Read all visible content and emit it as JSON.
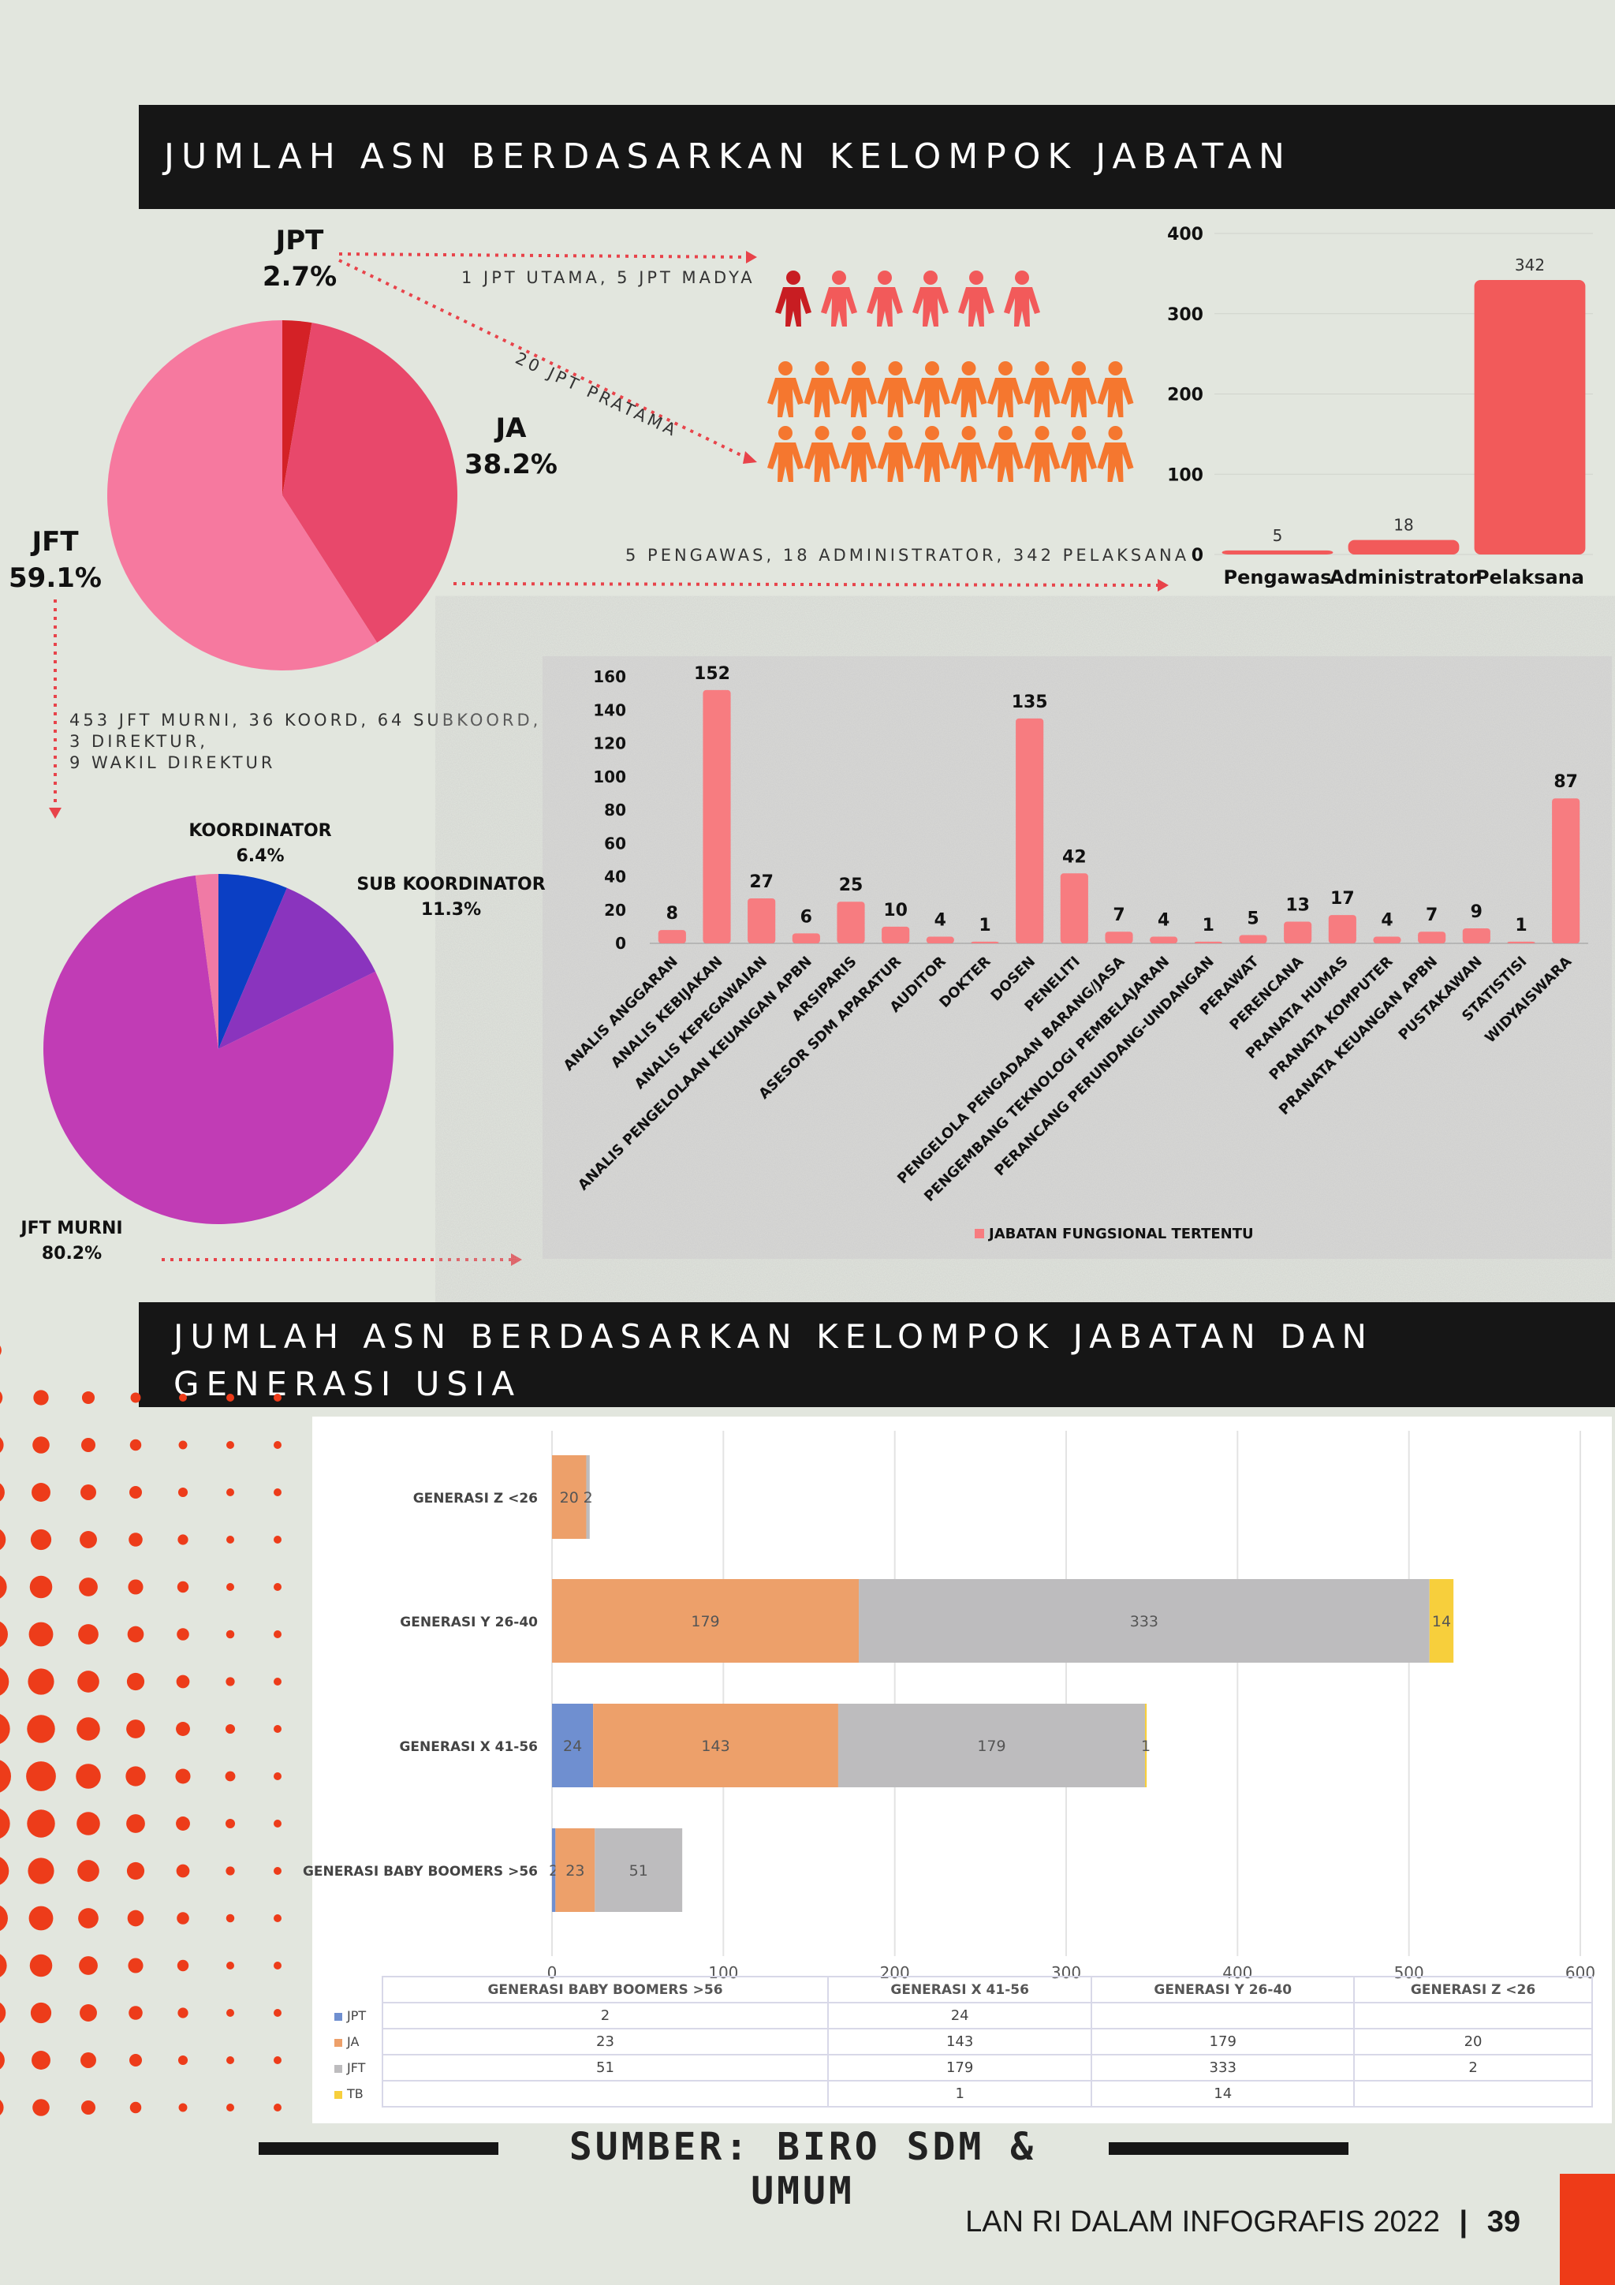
{
  "section1": {
    "title": "JUMLAH ASN BERDASARKAN KELOMPOK JABATAN",
    "pie": {
      "jpt_label": "JPT",
      "jpt_pct": "2.7%",
      "ja_label": "JA",
      "ja_pct": "38.2%",
      "jft_label": "JFT",
      "jft_pct": "59.1%",
      "colors": {
        "JPT": "#d42126",
        "JA": "#e8486b",
        "JFT": "#f6799f"
      }
    },
    "notes": {
      "jpt_utama": "1 JPT UTAMA, 5 JPT MADYA",
      "jpt_pratama": "20 JPT PRATAMA",
      "ja_detail": "5 PENGAWAS, 18 ADMINISTRATOR, 342 PELAKSANA",
      "jft_detail": "453 JFT MURNI, 36 KOORD, 64 SUBKOORD, 3 DIREKTUR,\n9 WAKIL DIREKTUR"
    },
    "pie2": {
      "koordinator_label": "KOORDINATOR",
      "koordinator_pct": "6.4%",
      "subkoordinator_label": "SUB KOORDINATOR",
      "subkoordinator_pct": "11.3%",
      "murni_label": "JFT MURNI",
      "murni_pct": "80.2%",
      "colors": {
        "koordinator": "#0b3fc4",
        "subkoordinator": "#8a34be",
        "murni": "#c13cb5",
        "other": "#f07aa5"
      }
    }
  },
  "section2": {
    "title": "JUMLAH ASN BERDASARKAN KELOMPOK JABATAN DAN GENERASI USIA"
  },
  "source": "SUMBER: BIRO SDM & UMUM",
  "footer": {
    "text": "LAN RI DALAM INFOGRAFIS 2022",
    "page": "39"
  },
  "chart_data": [
    {
      "type": "pie",
      "labels": [
        "JPT",
        "JA",
        "JFT"
      ],
      "values": [
        2.7,
        38.2,
        59.1
      ]
    },
    {
      "type": "pie",
      "labels": [
        "KOORDINATOR",
        "SUB KOORDINATOR",
        "JFT MURNI"
      ],
      "values": [
        6.4,
        11.3,
        80.2
      ]
    },
    {
      "type": "bar",
      "categories": [
        "Pengawas",
        "Administrator",
        "Pelaksana"
      ],
      "values": [
        5,
        18,
        342
      ],
      "ylim": [
        0,
        400
      ],
      "yticks": [
        0,
        100,
        200,
        300,
        400
      ],
      "color": "#f25a5a"
    },
    {
      "type": "bar",
      "categories": [
        "ANALIS ANGGARAN",
        "ANALIS KEBIJAKAN",
        "ANALIS KEPEGAWAIAN",
        "ANALIS PENGELOLAAN KEUANGAN APBN",
        "ARSIPARIS",
        "ASESOR SDM APARATUR",
        "AUDITOR",
        "DOKTER",
        "DOSEN",
        "PENELITI",
        "PENGELOLA PENGADAAN BARANG/JASA",
        "PENGEMBANG TEKNOLOGI PEMBELAJARAN",
        "PERANCANG PERUNDANG-UNDANGAN",
        "PERAWAT",
        "PERENCANA",
        "PRANATA HUMAS",
        "PRANATA KOMPUTER",
        "PRANATA KEUANGAN APBN",
        "PUSTAKAWAN",
        "STATISTISI",
        "WIDYAISWARA"
      ],
      "values": [
        8,
        152,
        27,
        6,
        25,
        10,
        4,
        1,
        135,
        42,
        7,
        4,
        1,
        5,
        13,
        17,
        4,
        7,
        9,
        1,
        87
      ],
      "ylim": [
        0,
        160
      ],
      "yticks": [
        0,
        20,
        40,
        60,
        80,
        100,
        120,
        140,
        160
      ],
      "legend": "JABATAN FUNGSIONAL TERTENTU",
      "legend_position": "bottom",
      "color": "#f77c80"
    },
    {
      "type": "bar",
      "orientation": "horizontal",
      "stacked": true,
      "categories": [
        "GENERASI Z <26",
        "GENERASI Y 26-40",
        "GENERASI X 41-56",
        "GENERASI BABY BOOMERS >56"
      ],
      "series": [
        {
          "name": "JPT",
          "values": [
            null,
            null,
            24,
            2
          ],
          "color": "#6f8fd0"
        },
        {
          "name": "JA",
          "values": [
            20,
            179,
            143,
            23
          ],
          "color": "#eda06a"
        },
        {
          "name": "JFT",
          "values": [
            2,
            333,
            179,
            51
          ],
          "color": "#bdbcbe"
        },
        {
          "name": "TB",
          "values": [
            null,
            14,
            1,
            null
          ],
          "color": "#f7cf3c"
        }
      ],
      "xlim": [
        0,
        600
      ],
      "xticks": [
        0,
        100,
        200,
        300,
        400,
        500,
        600
      ],
      "table_columns": [
        "GENERASI BABY BOOMERS >56",
        "GENERASI X 41-56",
        "GENERASI Y 26-40",
        "GENERASI Z <26"
      ]
    }
  ]
}
